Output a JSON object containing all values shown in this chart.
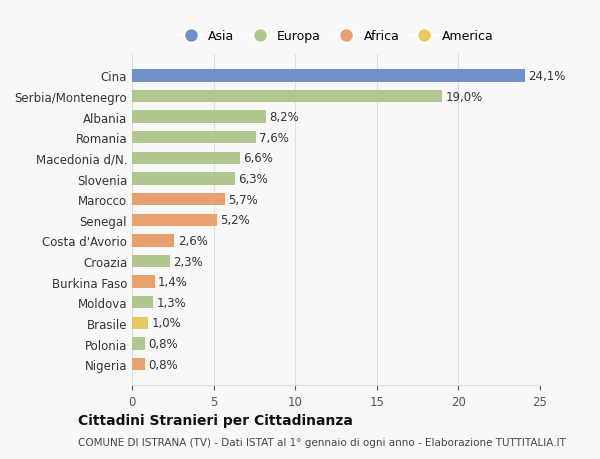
{
  "categories": [
    "Cina",
    "Serbia/Montenegro",
    "Albania",
    "Romania",
    "Macedonia d/N.",
    "Slovenia",
    "Marocco",
    "Senegal",
    "Costa d'Avorio",
    "Croazia",
    "Burkina Faso",
    "Moldova",
    "Brasile",
    "Polonia",
    "Nigeria"
  ],
  "values": [
    24.1,
    19.0,
    8.2,
    7.6,
    6.6,
    6.3,
    5.7,
    5.2,
    2.6,
    2.3,
    1.4,
    1.3,
    1.0,
    0.8,
    0.8
  ],
  "labels": [
    "24,1%",
    "19,0%",
    "8,2%",
    "7,6%",
    "6,6%",
    "6,3%",
    "5,7%",
    "5,2%",
    "2,6%",
    "2,3%",
    "1,4%",
    "1,3%",
    "1,0%",
    "0,8%",
    "0,8%"
  ],
  "continents": [
    "Asia",
    "Europa",
    "Europa",
    "Europa",
    "Europa",
    "Europa",
    "Africa",
    "Africa",
    "Africa",
    "Europa",
    "Africa",
    "Europa",
    "America",
    "Europa",
    "Africa"
  ],
  "continent_colors": {
    "Asia": "#7090c8",
    "Europa": "#b0c890",
    "Africa": "#e8a070",
    "America": "#e8c860"
  },
  "legend_labels": [
    "Asia",
    "Europa",
    "Africa",
    "America"
  ],
  "title": "Cittadini Stranieri per Cittadinanza",
  "subtitle": "COMUNE DI ISTRANA (TV) - Dati ISTAT al 1° gennaio di ogni anno - Elaborazione TUTTITALIA.IT",
  "xlim": [
    0,
    25
  ],
  "xticks": [
    0,
    5,
    10,
    15,
    20,
    25
  ],
  "background_color": "#f8f8f8",
  "grid_color": "#dddddd"
}
